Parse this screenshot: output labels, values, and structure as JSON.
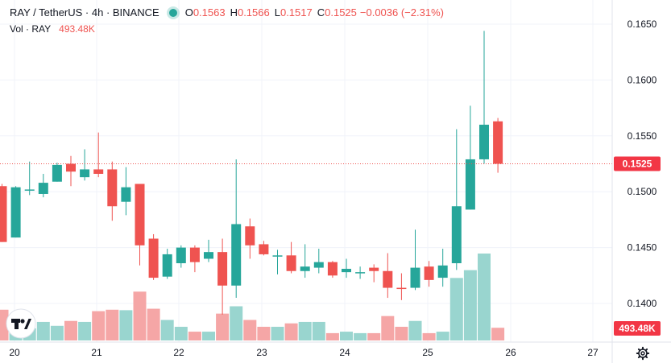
{
  "legend": {
    "symbol": "RAY / TetherUS · 4h · BINANCE",
    "o_label": "O",
    "o_value": "0.1563",
    "h_label": "H",
    "h_value": "0.1566",
    "l_label": "L",
    "l_value": "0.1517",
    "c_label": "C",
    "c_value": "0.1525",
    "change": "−0.0036 (−2.31%)",
    "volume_label": "Vol · RAY",
    "volume_value": "493.48K"
  },
  "colors": {
    "up": "#26a69a",
    "down": "#ef5350",
    "up_volume": "#99d5cf",
    "down_volume": "#f5a6a6",
    "grid": "#f0f3fa",
    "text": "#131722",
    "price_tag": "#f23645"
  },
  "icons": [
    "tradingview-logo-icon",
    "settings-gear-icon",
    "status-dot-icon"
  ],
  "chart_data": {
    "type": "candlestick",
    "y_axis_ticks": [
      "0.1650",
      "0.1600",
      "0.1550",
      "0.1500",
      "0.1450",
      "0.1400"
    ],
    "y_axis_tick_values": [
      0.165,
      0.16,
      0.155,
      0.15,
      0.145,
      0.14
    ],
    "ylim": [
      0.1382,
      0.1664
    ],
    "x_axis_ticks": [
      "20",
      "21",
      "22",
      "23",
      "24",
      "25",
      "26",
      "27"
    ],
    "last_price_label": "0.1525",
    "last_price_value": 0.1525,
    "last_volume_label": "493.48K",
    "candles": [
      {
        "o": 0.1505,
        "h": 0.1507,
        "l": 0.1455,
        "c": 0.1455,
        "v": 0.63
      },
      {
        "o": 0.1459,
        "h": 0.1505,
        "l": 0.1459,
        "c": 0.1504,
        "v": 0.45
      },
      {
        "o": 0.1502,
        "h": 0.1527,
        "l": 0.1497,
        "c": 0.1502,
        "v": 0.25
      },
      {
        "o": 0.1498,
        "h": 0.1516,
        "l": 0.1495,
        "c": 0.1508,
        "v": 0.38
      },
      {
        "o": 0.1509,
        "h": 0.1526,
        "l": 0.1509,
        "c": 0.1524,
        "v": 0.3
      },
      {
        "o": 0.1525,
        "h": 0.1532,
        "l": 0.1505,
        "c": 0.1518,
        "v": 0.4
      },
      {
        "o": 0.1513,
        "h": 0.1538,
        "l": 0.151,
        "c": 0.152,
        "v": 0.38
      },
      {
        "o": 0.152,
        "h": 0.1553,
        "l": 0.1513,
        "c": 0.1516,
        "v": 0.6
      },
      {
        "o": 0.152,
        "h": 0.1527,
        "l": 0.1474,
        "c": 0.1487,
        "v": 0.63
      },
      {
        "o": 0.1491,
        "h": 0.1522,
        "l": 0.1479,
        "c": 0.1504,
        "v": 0.62
      },
      {
        "o": 0.1507,
        "h": 0.1507,
        "l": 0.1434,
        "c": 0.1452,
        "v": 1.0
      },
      {
        "o": 0.1458,
        "h": 0.1462,
        "l": 0.1421,
        "c": 0.1423,
        "v": 0.65
      },
      {
        "o": 0.1424,
        "h": 0.1449,
        "l": 0.1422,
        "c": 0.1444,
        "v": 0.42
      },
      {
        "o": 0.1436,
        "h": 0.1452,
        "l": 0.1432,
        "c": 0.145,
        "v": 0.28
      },
      {
        "o": 0.145,
        "h": 0.1452,
        "l": 0.1428,
        "c": 0.1437,
        "v": 0.18
      },
      {
        "o": 0.144,
        "h": 0.1457,
        "l": 0.1437,
        "c": 0.1446,
        "v": 0.18
      },
      {
        "o": 0.1446,
        "h": 0.1458,
        "l": 0.139,
        "c": 0.1416,
        "v": 0.55
      },
      {
        "o": 0.1416,
        "h": 0.1529,
        "l": 0.1405,
        "c": 0.1471,
        "v": 0.7
      },
      {
        "o": 0.1469,
        "h": 0.1476,
        "l": 0.144,
        "c": 0.1452,
        "v": 0.42
      },
      {
        "o": 0.1453,
        "h": 0.1456,
        "l": 0.1443,
        "c": 0.1444,
        "v": 0.28
      },
      {
        "o": 0.1443,
        "h": 0.1448,
        "l": 0.1426,
        "c": 0.1443,
        "v": 0.28
      },
      {
        "o": 0.1443,
        "h": 0.1455,
        "l": 0.1427,
        "c": 0.1429,
        "v": 0.35
      },
      {
        "o": 0.1429,
        "h": 0.1453,
        "l": 0.1423,
        "c": 0.1433,
        "v": 0.38
      },
      {
        "o": 0.1432,
        "h": 0.1449,
        "l": 0.1427,
        "c": 0.1437,
        "v": 0.38
      },
      {
        "o": 0.1437,
        "h": 0.1438,
        "l": 0.1423,
        "c": 0.1425,
        "v": 0.15
      },
      {
        "o": 0.1428,
        "h": 0.144,
        "l": 0.1423,
        "c": 0.1431,
        "v": 0.18
      },
      {
        "o": 0.1427,
        "h": 0.1433,
        "l": 0.1422,
        "c": 0.1428,
        "v": 0.15
      },
      {
        "o": 0.1432,
        "h": 0.1435,
        "l": 0.1419,
        "c": 0.1429,
        "v": 0.15
      },
      {
        "o": 0.1429,
        "h": 0.1445,
        "l": 0.1405,
        "c": 0.1414,
        "v": 0.5
      },
      {
        "o": 0.1414,
        "h": 0.1427,
        "l": 0.1403,
        "c": 0.1413,
        "v": 0.28
      },
      {
        "o": 0.1414,
        "h": 0.1466,
        "l": 0.1412,
        "c": 0.1432,
        "v": 0.4
      },
      {
        "o": 0.1433,
        "h": 0.1438,
        "l": 0.1415,
        "c": 0.1421,
        "v": 0.15
      },
      {
        "o": 0.1423,
        "h": 0.1449,
        "l": 0.1415,
        "c": 0.1434,
        "v": 0.18
      },
      {
        "o": 0.1436,
        "h": 0.1556,
        "l": 0.143,
        "c": 0.1487,
        "v": 1.28
      },
      {
        "o": 0.1484,
        "h": 0.1577,
        "l": 0.1484,
        "c": 0.1529,
        "v": 1.44
      },
      {
        "o": 0.1529,
        "h": 0.1644,
        "l": 0.1525,
        "c": 0.156,
        "v": 1.78
      },
      {
        "o": 0.1563,
        "h": 0.1566,
        "l": 0.1517,
        "c": 0.1525,
        "v": 0.26
      }
    ]
  }
}
